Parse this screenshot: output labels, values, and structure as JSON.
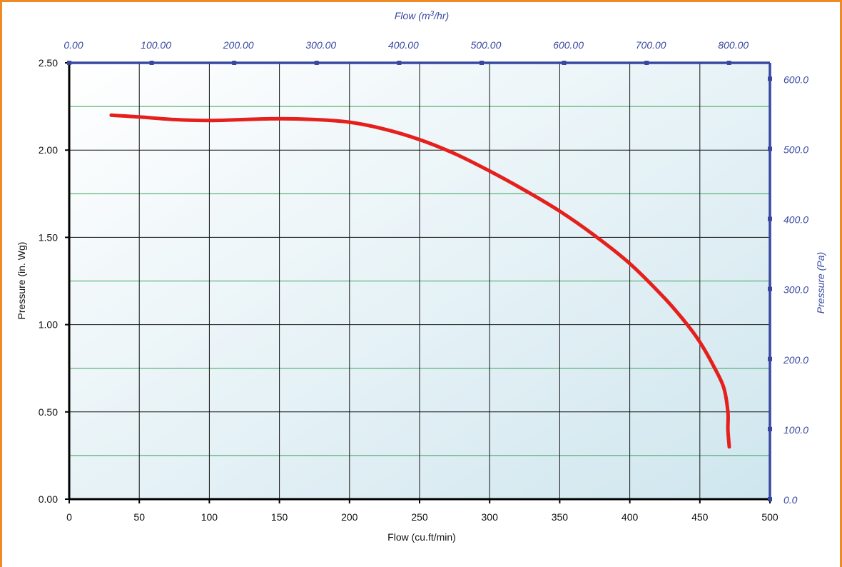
{
  "chart_data": {
    "type": "line",
    "x_bottom": {
      "label": "Flow (cu.ft/min)",
      "ticks": [
        0,
        50,
        100,
        150,
        200,
        250,
        300,
        350,
        400,
        450,
        500
      ],
      "tick_labels": [
        "0",
        "50",
        "100",
        "150",
        "200",
        "250",
        "300",
        "350",
        "400",
        "450",
        "500"
      ],
      "range": [
        0,
        500
      ]
    },
    "x_top": {
      "label_prefix": "Flow (m",
      "label_sup": "3",
      "label_suffix": "/hr)",
      "tick_labels": [
        "0.00",
        "100.00",
        "200.00",
        "300.00",
        "400.00",
        "500.00",
        "600.00",
        "700.00",
        "800.00"
      ],
      "ticks": [
        0,
        100,
        200,
        300,
        400,
        500,
        600,
        700,
        800
      ]
    },
    "y_left": {
      "label": "Pressure (in. Wg)",
      "ticks": [
        0,
        0.5,
        1.0,
        1.5,
        2.0,
        2.5
      ],
      "tick_labels": [
        "0.00",
        "0.50",
        "1.00",
        "1.50",
        "2.00",
        "2.50"
      ],
      "range": [
        0,
        2.5
      ]
    },
    "y_right": {
      "label": "Pressure (Pa)",
      "ticks": [
        0,
        100,
        200,
        300,
        400,
        500,
        600
      ],
      "tick_labels": [
        "0.0",
        "100.0",
        "200.0",
        "300.0",
        "400.0",
        "500.0",
        "600.0"
      ]
    },
    "grid": true,
    "series": [
      {
        "x": [
          30,
          50,
          75,
          100,
          125,
          150,
          175,
          200,
          225,
          250,
          275,
          300,
          325,
          350,
          375,
          400,
          425,
          440,
          450,
          460,
          467,
          470,
          470,
          471
        ],
        "y": [
          2.2,
          2.19,
          2.175,
          2.17,
          2.175,
          2.18,
          2.175,
          2.16,
          2.12,
          2.06,
          1.98,
          1.88,
          1.77,
          1.65,
          1.51,
          1.35,
          1.15,
          1.01,
          0.9,
          0.76,
          0.64,
          0.5,
          0.4,
          0.3
        ],
        "color": "#e5201c"
      }
    ],
    "colors": {
      "curve": "#e5201c",
      "blue_axis": "#3848a0",
      "minor_grid": "#3aa05a",
      "frame": "#f08a24"
    }
  }
}
